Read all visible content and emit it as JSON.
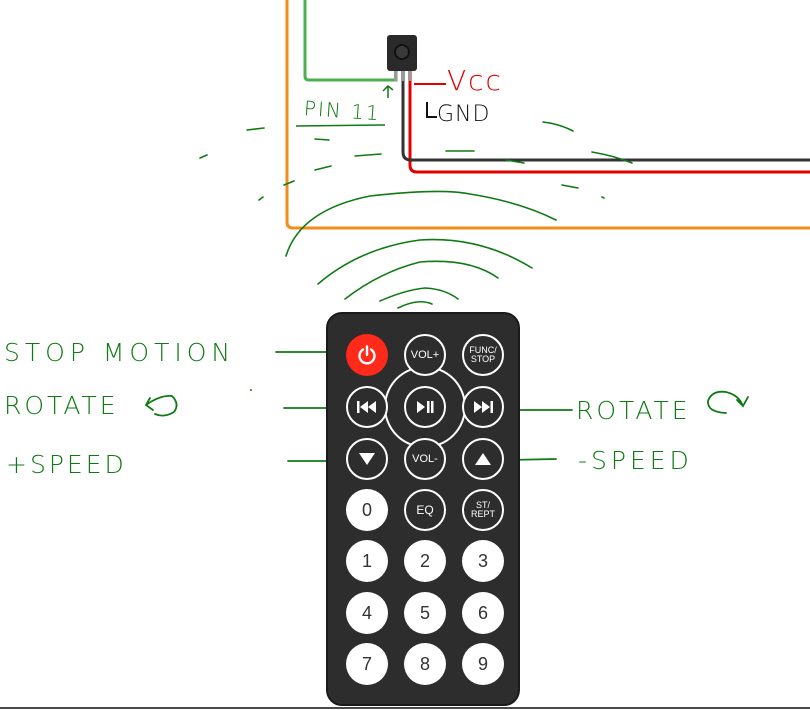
{
  "colors": {
    "green": "#0f7a13",
    "red": "#e00000",
    "orange": "#f28c1b",
    "black": "#111111",
    "remote_body": "#2d2d2d",
    "power_button": "#ff2a1a"
  },
  "wiring": {
    "vcc_label": "Vcc",
    "gnd_label": "GND",
    "pin_label": "PIN 11"
  },
  "annotations": {
    "stop_motion": "STOP MOTION",
    "rotate_left": "ROTATE",
    "plus_speed": "+SPEED",
    "rotate_right": "ROTATE",
    "minus_speed": "-SPEED"
  },
  "remote": {
    "buttons": {
      "power_icon": "power-icon",
      "vol_plus": "VOL+",
      "func_stop_1": "FUNC/",
      "func_stop_2": "STOP",
      "prev_icon": "skip-back-icon",
      "play_pause_icon": "play-pause-icon",
      "next_icon": "skip-forward-icon",
      "down_icon": "triangle-down-icon",
      "vol_minus": "VOL-",
      "up_icon": "triangle-up-icon",
      "zero": "0",
      "eq": "EQ",
      "st_rept_1": "ST/",
      "st_rept_2": "REPT",
      "one": "1",
      "two": "2",
      "three": "3",
      "four": "4",
      "five": "5",
      "six": "6",
      "seven": "7",
      "eight": "8",
      "nine": "9"
    }
  }
}
